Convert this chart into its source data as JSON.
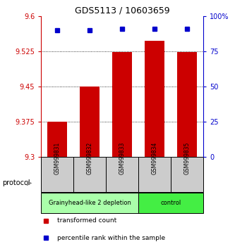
{
  "title": "GDS5113 / 10603659",
  "samples": [
    "GSM999831",
    "GSM999832",
    "GSM999833",
    "GSM999834",
    "GSM999835"
  ],
  "bar_values": [
    9.375,
    9.45,
    9.523,
    9.548,
    9.523
  ],
  "percentile_values": [
    90,
    90,
    91,
    91,
    91
  ],
  "bar_color": "#cc0000",
  "dot_color": "#0000cc",
  "ylim_left": [
    9.3,
    9.6
  ],
  "ylim_right": [
    0,
    100
  ],
  "yticks_left": [
    9.3,
    9.375,
    9.45,
    9.525,
    9.6
  ],
  "yticks_right": [
    0,
    25,
    50,
    75,
    100
  ],
  "ytick_labels_left": [
    "9.3",
    "9.375",
    "9.45",
    "9.525",
    "9.6"
  ],
  "ytick_labels_right": [
    "0",
    "25",
    "50",
    "75",
    "100%"
  ],
  "groups": [
    {
      "label": "Grainyhead-like 2 depletion",
      "indices": [
        0,
        1,
        2
      ],
      "color": "#aaffaa"
    },
    {
      "label": "control",
      "indices": [
        3,
        4
      ],
      "color": "#44ee44"
    }
  ],
  "protocol_label": "protocol",
  "legend_items": [
    {
      "color": "#cc0000",
      "label": "transformed count"
    },
    {
      "color": "#0000cc",
      "label": "percentile rank within the sample"
    }
  ],
  "background_color": "#ffffff",
  "bar_bottom": 9.3,
  "grid_yticks": [
    9.375,
    9.45,
    9.525
  ]
}
